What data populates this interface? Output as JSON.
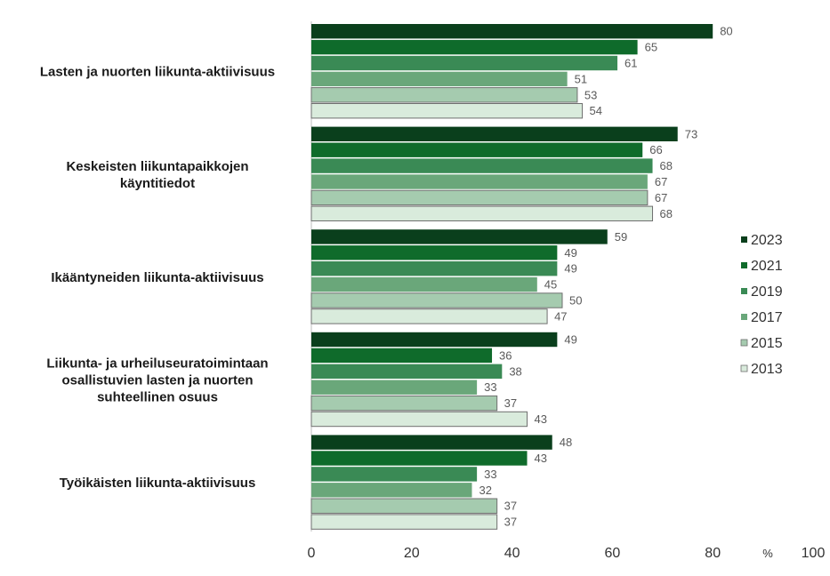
{
  "chart_data": {
    "type": "bar",
    "orientation": "horizontal",
    "categories": [
      "Lasten ja nuorten liikunta-aktiivisuus",
      "Keskeisten liikuntapaikkojen käyntitiedot",
      "Ikääntyneiden liikunta-aktiivisuus",
      "Liikunta- ja urheiluseuratoimintaan osallistuvien lasten ja nuorten suhteellinen osuus",
      "Työikäisten liikunta-aktiivisuus"
    ],
    "category_lines": [
      [
        "Lasten ja nuorten liikunta-aktiivisuus"
      ],
      [
        "Keskeisten liikuntapaikkojen",
        "käyntitiedot"
      ],
      [
        "Ikääntyneiden liikunta-aktiivisuus"
      ],
      [
        "Liikunta- ja urheiluseuratoimintaan",
        "osallistuvien lasten ja nuorten",
        "suhteellinen osuus"
      ],
      [
        "Työikäisten liikunta-aktiivisuus"
      ]
    ],
    "series": [
      {
        "name": "2023",
        "color": "#0a3f1c",
        "values": [
          80,
          73,
          59,
          49,
          48
        ]
      },
      {
        "name": "2021",
        "color": "#0f6b2b",
        "values": [
          65,
          66,
          49,
          36,
          43
        ]
      },
      {
        "name": "2019",
        "color": "#3a8a55",
        "values": [
          61,
          68,
          49,
          38,
          33
        ]
      },
      {
        "name": "2017",
        "color": "#6aa77a",
        "values": [
          51,
          67,
          45,
          33,
          32
        ]
      },
      {
        "name": "2015",
        "color": "#a5cbaf",
        "values": [
          53,
          67,
          50,
          37,
          37
        ]
      },
      {
        "name": "2013",
        "color": "#d9ebdc",
        "values": [
          54,
          68,
          47,
          43,
          37
        ]
      }
    ],
    "xlim": [
      0,
      100
    ],
    "xticks": [
      0,
      20,
      40,
      60,
      80,
      100
    ],
    "x_unit": "%",
    "legend_position": "right"
  }
}
